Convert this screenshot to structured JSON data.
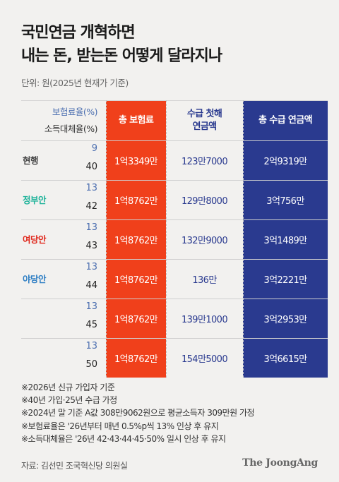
{
  "title": [
    "국민연금 개혁하면",
    "내는 돈, 받는돈 어떻게 달라지나"
  ],
  "unit": "단위: 원(2025년 현재가 기준)",
  "headers": {
    "rate": "보험료율(%)",
    "replacement": "소득대체율(%)",
    "premium": "총 보험료",
    "first_year": [
      "수급 첫해",
      "연금액"
    ],
    "total": "총 수급 연금액"
  },
  "colors": {
    "premium_column": "#f0401b",
    "total_column": "#2a3a8f",
    "first_year_text": "#2a3a8f",
    "rate_text": "#4c6fb0"
  },
  "chart_data": {
    "type": "table",
    "columns": [
      "",
      "보험료율(%)",
      "소득대체율(%)",
      "총 보험료",
      "수급 첫해 연금액",
      "총 수급 연금액"
    ],
    "rows": [
      {
        "plan": "현행",
        "plan_color": "#444444",
        "rate": "9",
        "replacement": "40",
        "premium": "1억3349만",
        "first_year": "123만7000",
        "total": "2억9319만"
      },
      {
        "plan": "정부안",
        "plan_color": "#1fb39a",
        "rate": "13",
        "replacement": "42",
        "premium": "1억8762만",
        "first_year": "129만8000",
        "total": "3억756만"
      },
      {
        "plan": "여당안",
        "plan_color": "#e0281c",
        "rate": "13",
        "replacement": "43",
        "premium": "1억8762만",
        "first_year": "132만9000",
        "total": "3억1489만"
      },
      {
        "plan": "야당안",
        "plan_color": "#2f7fc4",
        "rate": "13",
        "replacement": "44",
        "premium": "1억8762만",
        "first_year": "136만",
        "total": "3억2221만"
      },
      {
        "plan": "",
        "plan_color": "#444444",
        "rate": "13",
        "replacement": "45",
        "premium": "1억8762만",
        "first_year": "139만1000",
        "total": "3억2953만"
      },
      {
        "plan": "",
        "plan_color": "#444444",
        "rate": "13",
        "replacement": "50",
        "premium": "1억8762만",
        "first_year": "154만5000",
        "total": "3억6615만"
      }
    ]
  },
  "notes": [
    "※2026년 신규 가입자 기준",
    "※40년 가입·25년 수급 가정",
    "※2024년 말 기준 A값 308만9062원으로 평균소득자 309만원 가정",
    "※보험료율은 '26년부터 매년 0.5%p씩 13% 인상 후 유지",
    "※소득대체율은 '26년 42·43·44·45·50% 일시 인상 후 유지"
  ],
  "source": "자료: 김선민 조국혁신당 의원실",
  "logo": "The JoongAng"
}
